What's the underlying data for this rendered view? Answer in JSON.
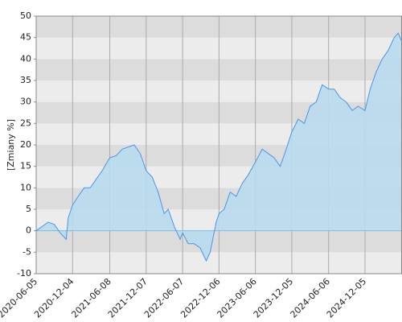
{
  "chart_data": {
    "type": "area",
    "y_label": "[Zmiany %]",
    "x": [
      0,
      30,
      60,
      90,
      120,
      150,
      160,
      182,
      210,
      240,
      270,
      300,
      330,
      368,
      400,
      430,
      460,
      490,
      520,
      550,
      580,
      610,
      640,
      660,
      690,
      720,
      732,
      760,
      790,
      820,
      850,
      870,
      900,
      914,
      940,
      970,
      1000,
      1030,
      1060,
      1096,
      1130,
      1160,
      1190,
      1220,
      1250,
      1278,
      1310,
      1340,
      1370,
      1400,
      1430,
      1462,
      1490,
      1520,
      1550,
      1580,
      1610,
      1644,
      1670,
      1700,
      1730,
      1760,
      1790,
      1810,
      1829
    ],
    "series": [
      {
        "color": "#4d94e8",
        "values": [
          0,
          1,
          2,
          1.5,
          -0.5,
          -2,
          3,
          6,
          8,
          10,
          10,
          12,
          14,
          17,
          17.5,
          19,
          19.5,
          20,
          18,
          14,
          12.5,
          9,
          4,
          5,
          1,
          -2,
          -0.5,
          -3,
          -3,
          -4,
          -7,
          -5,
          2,
          4,
          5,
          9,
          8,
          11,
          13,
          16,
          19,
          18,
          17,
          15,
          19,
          23,
          26,
          25,
          29,
          30,
          34,
          33,
          33,
          31,
          30,
          28,
          29,
          28,
          33,
          37,
          40,
          42,
          45,
          46,
          44
        ]
      }
    ],
    "fill": "#b8dcee",
    "xlim": [
      0,
      1829
    ],
    "xticks": [
      {
        "value": 0,
        "label": "2020-06-05"
      },
      {
        "value": 182,
        "label": "2020-12-04"
      },
      {
        "value": 368,
        "label": "2021-06-08"
      },
      {
        "value": 550,
        "label": "2021-12-07"
      },
      {
        "value": 732,
        "label": "2022-06-07"
      },
      {
        "value": 914,
        "label": "2022-12-06"
      },
      {
        "value": 1096,
        "label": "2023-06-06"
      },
      {
        "value": 1278,
        "label": "2023-12-05"
      },
      {
        "value": 1462,
        "label": "2024-06-06"
      },
      {
        "value": 1644,
        "label": "2024-12-05"
      }
    ],
    "ylim": [
      -10,
      50
    ],
    "yticks": [
      -10,
      -5,
      0,
      5,
      10,
      15,
      20,
      25,
      30,
      35,
      40,
      45,
      50
    ],
    "grid": true
  }
}
